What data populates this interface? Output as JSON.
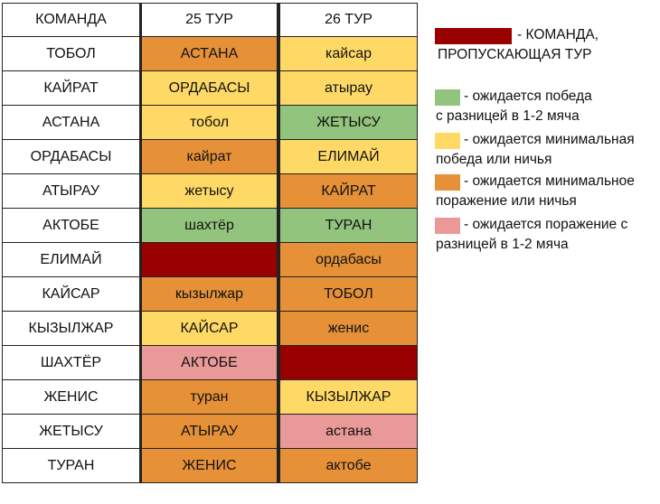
{
  "colors": {
    "green": "#93c47d",
    "yellow": "#ffd966",
    "orange": "#e69138",
    "pink": "#ea9999",
    "darkred": "#990000",
    "white": "#ffffff"
  },
  "table": {
    "headers": [
      "КОМАНДА",
      "25 ТУР",
      "26 ТУР"
    ],
    "rows": [
      {
        "team": "ТОБОЛ",
        "r25": "АСТАНА",
        "c25": "orange",
        "r26": "кайсар",
        "c26": "yellow"
      },
      {
        "team": "КАЙРАТ",
        "r25": "ОРДАБАСЫ",
        "c25": "yellow",
        "r26": "атырау",
        "c26": "yellow"
      },
      {
        "team": "АСТАНА",
        "r25": "тобол",
        "c25": "yellow",
        "r26": "ЖЕТЫСУ",
        "c26": "green"
      },
      {
        "team": "ОРДАБАСЫ",
        "r25": "кайрат",
        "c25": "orange",
        "r26": "ЕЛИМАЙ",
        "c26": "yellow"
      },
      {
        "team": "АТЫРАУ",
        "r25": "жетысу",
        "c25": "yellow",
        "r26": "КАЙРАТ",
        "c26": "orange"
      },
      {
        "team": "АКТОБЕ",
        "r25": "шахтёр",
        "c25": "green",
        "r26": "ТУРАН",
        "c26": "green"
      },
      {
        "team": "ЕЛИМАЙ",
        "r25": "",
        "c25": "darkred",
        "r26": "ордабасы",
        "c26": "orange"
      },
      {
        "team": "КАЙСАР",
        "r25": "кызылжар",
        "c25": "orange",
        "r26": "ТОБОЛ",
        "c26": "orange"
      },
      {
        "team": "КЫЗЫЛЖАР",
        "r25": "КАЙСАР",
        "c25": "yellow",
        "r26": "женис",
        "c26": "orange"
      },
      {
        "team": "ШАХТЁР",
        "r25": "АКТОБЕ",
        "c25": "pink",
        "r26": "",
        "c26": "darkred"
      },
      {
        "team": "ЖЕНИС",
        "r25": "туран",
        "c25": "orange",
        "r26": "КЫЗЫЛЖАР",
        "c26": "yellow"
      },
      {
        "team": "ЖЕТЫСУ",
        "r25": "АТЫРАУ",
        "c25": "orange",
        "r26": "астана",
        "c26": "pink"
      },
      {
        "team": "ТУРАН",
        "r25": "ЖЕНИС",
        "c25": "orange",
        "r26": "актобе",
        "c26": "orange"
      }
    ]
  },
  "legend": [
    {
      "color": "darkred",
      "line1": "- КОМАНДА,",
      "line2": "ПРОПУСКАЮЩАЯ ТУР"
    },
    {
      "color": "green",
      "line1": "- ожидается победа",
      "line2": "с разницей в 1-2 мяча"
    },
    {
      "color": "yellow",
      "line1": "- ожидается минимальная",
      "line2": "победа или ничья"
    },
    {
      "color": "orange",
      "line1": "- ожидается минимальное",
      "line2": "поражение или ничья"
    },
    {
      "color": "pink",
      "line1": "- ожидается поражение с",
      "line2": "разницей в 1-2 мяча"
    }
  ]
}
